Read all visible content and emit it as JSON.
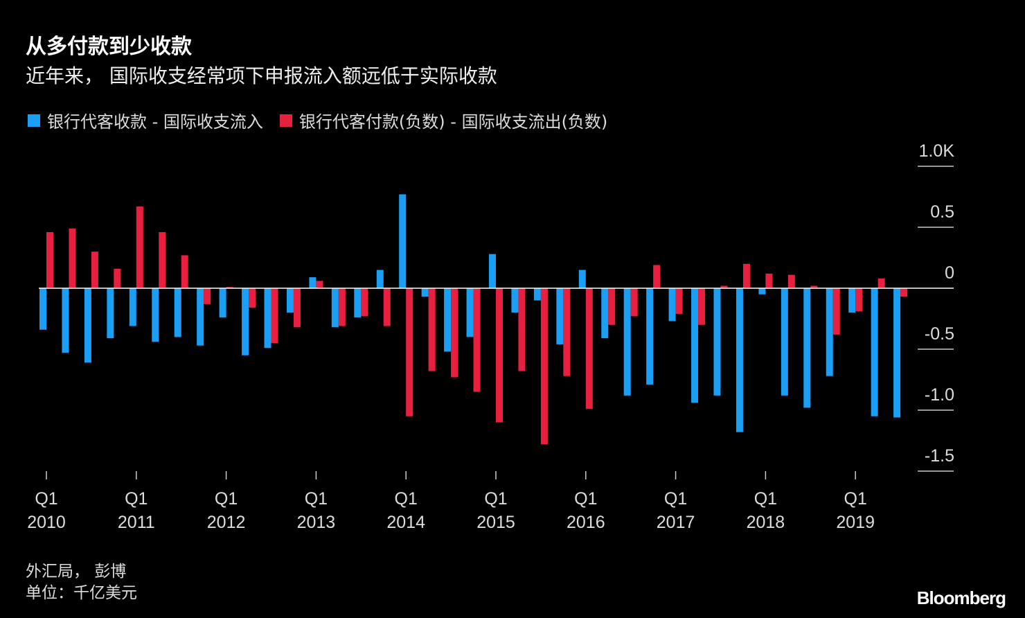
{
  "title": "从多付款到少收款",
  "subtitle": "近年来， 国际收支经常项下申报流入额远低于实际收款",
  "source": "外汇局， 彭博",
  "unit": "单位：千亿美元",
  "logo": "Bloomberg",
  "colors": {
    "inflow": "#1a9ff5",
    "outflow": "#e8203f",
    "background": "#000000"
  },
  "chart_data": {
    "type": "bar",
    "title": "从多付款到少收款",
    "subtitle": "近年来， 国际收支经常项下申报流入额远低于实际收款",
    "ylim": [
      -1.5,
      1.0
    ],
    "y_ticks": [
      "1.0K",
      "0.5",
      "0",
      "-0.5",
      "-1.0",
      "-1.5"
    ],
    "y_tick_values": [
      1.0,
      0.5,
      0,
      -0.5,
      -1.0,
      -1.5
    ],
    "x_ticks": [
      {
        "q": "Q1",
        "y": "2010"
      },
      {
        "q": "Q1",
        "y": "2011"
      },
      {
        "q": "Q1",
        "y": "2012"
      },
      {
        "q": "Q1",
        "y": "2013"
      },
      {
        "q": "Q1",
        "y": "2014"
      },
      {
        "q": "Q1",
        "y": "2015"
      },
      {
        "q": "Q1",
        "y": "2016"
      },
      {
        "q": "Q1",
        "y": "2017"
      },
      {
        "q": "Q1",
        "y": "2018"
      },
      {
        "q": "Q1",
        "y": "2019"
      }
    ],
    "legend_position": "top-left",
    "grid": false,
    "categories": [
      "2010Q1",
      "2010Q2",
      "2010Q3",
      "2010Q4",
      "2011Q1",
      "2011Q2",
      "2011Q3",
      "2011Q4",
      "2012Q1",
      "2012Q2",
      "2012Q3",
      "2012Q4",
      "2013Q1",
      "2013Q2",
      "2013Q3",
      "2013Q4",
      "2014Q1",
      "2014Q2",
      "2014Q3",
      "2014Q4",
      "2015Q1",
      "2015Q2",
      "2015Q3",
      "2015Q4",
      "2016Q1",
      "2016Q2",
      "2016Q3",
      "2016Q4",
      "2017Q1",
      "2017Q2",
      "2017Q3",
      "2017Q4",
      "2018Q1",
      "2018Q2",
      "2018Q3",
      "2018Q4",
      "2019Q1",
      "2019Q2",
      "2019Q3"
    ],
    "series": [
      {
        "name": "银行代客收款 - 国际收支流入",
        "color": "#1a9ff5",
        "values": [
          -0.34,
          -0.53,
          -0.61,
          -0.41,
          -0.31,
          -0.44,
          -0.4,
          -0.47,
          -0.24,
          -0.55,
          -0.49,
          -0.2,
          0.09,
          -0.32,
          -0.24,
          0.15,
          0.77,
          -0.07,
          -0.52,
          -0.4,
          0.28,
          -0.2,
          -0.1,
          -0.46,
          0.15,
          -0.41,
          -0.88,
          -0.79,
          -0.27,
          -0.94,
          -0.88,
          -1.18,
          -0.05,
          -0.88,
          -0.98,
          -0.72,
          -0.2,
          -1.05,
          -1.06
        ]
      },
      {
        "name": "银行代客付款(负数) - 国际收支流出(负数)",
        "color": "#e8203f",
        "values": [
          0.46,
          0.49,
          0.3,
          0.16,
          0.67,
          0.46,
          0.27,
          -0.13,
          0.01,
          -0.16,
          -0.45,
          -0.32,
          0.06,
          -0.31,
          -0.23,
          -0.31,
          -1.05,
          -0.68,
          -0.73,
          -0.85,
          -1.1,
          -0.68,
          -1.28,
          -0.72,
          -0.99,
          -0.3,
          -0.23,
          0.19,
          -0.21,
          -0.3,
          0.02,
          0.2,
          0.12,
          0.11,
          0.02,
          -0.38,
          -0.19,
          0.08,
          -0.07
        ]
      }
    ]
  }
}
